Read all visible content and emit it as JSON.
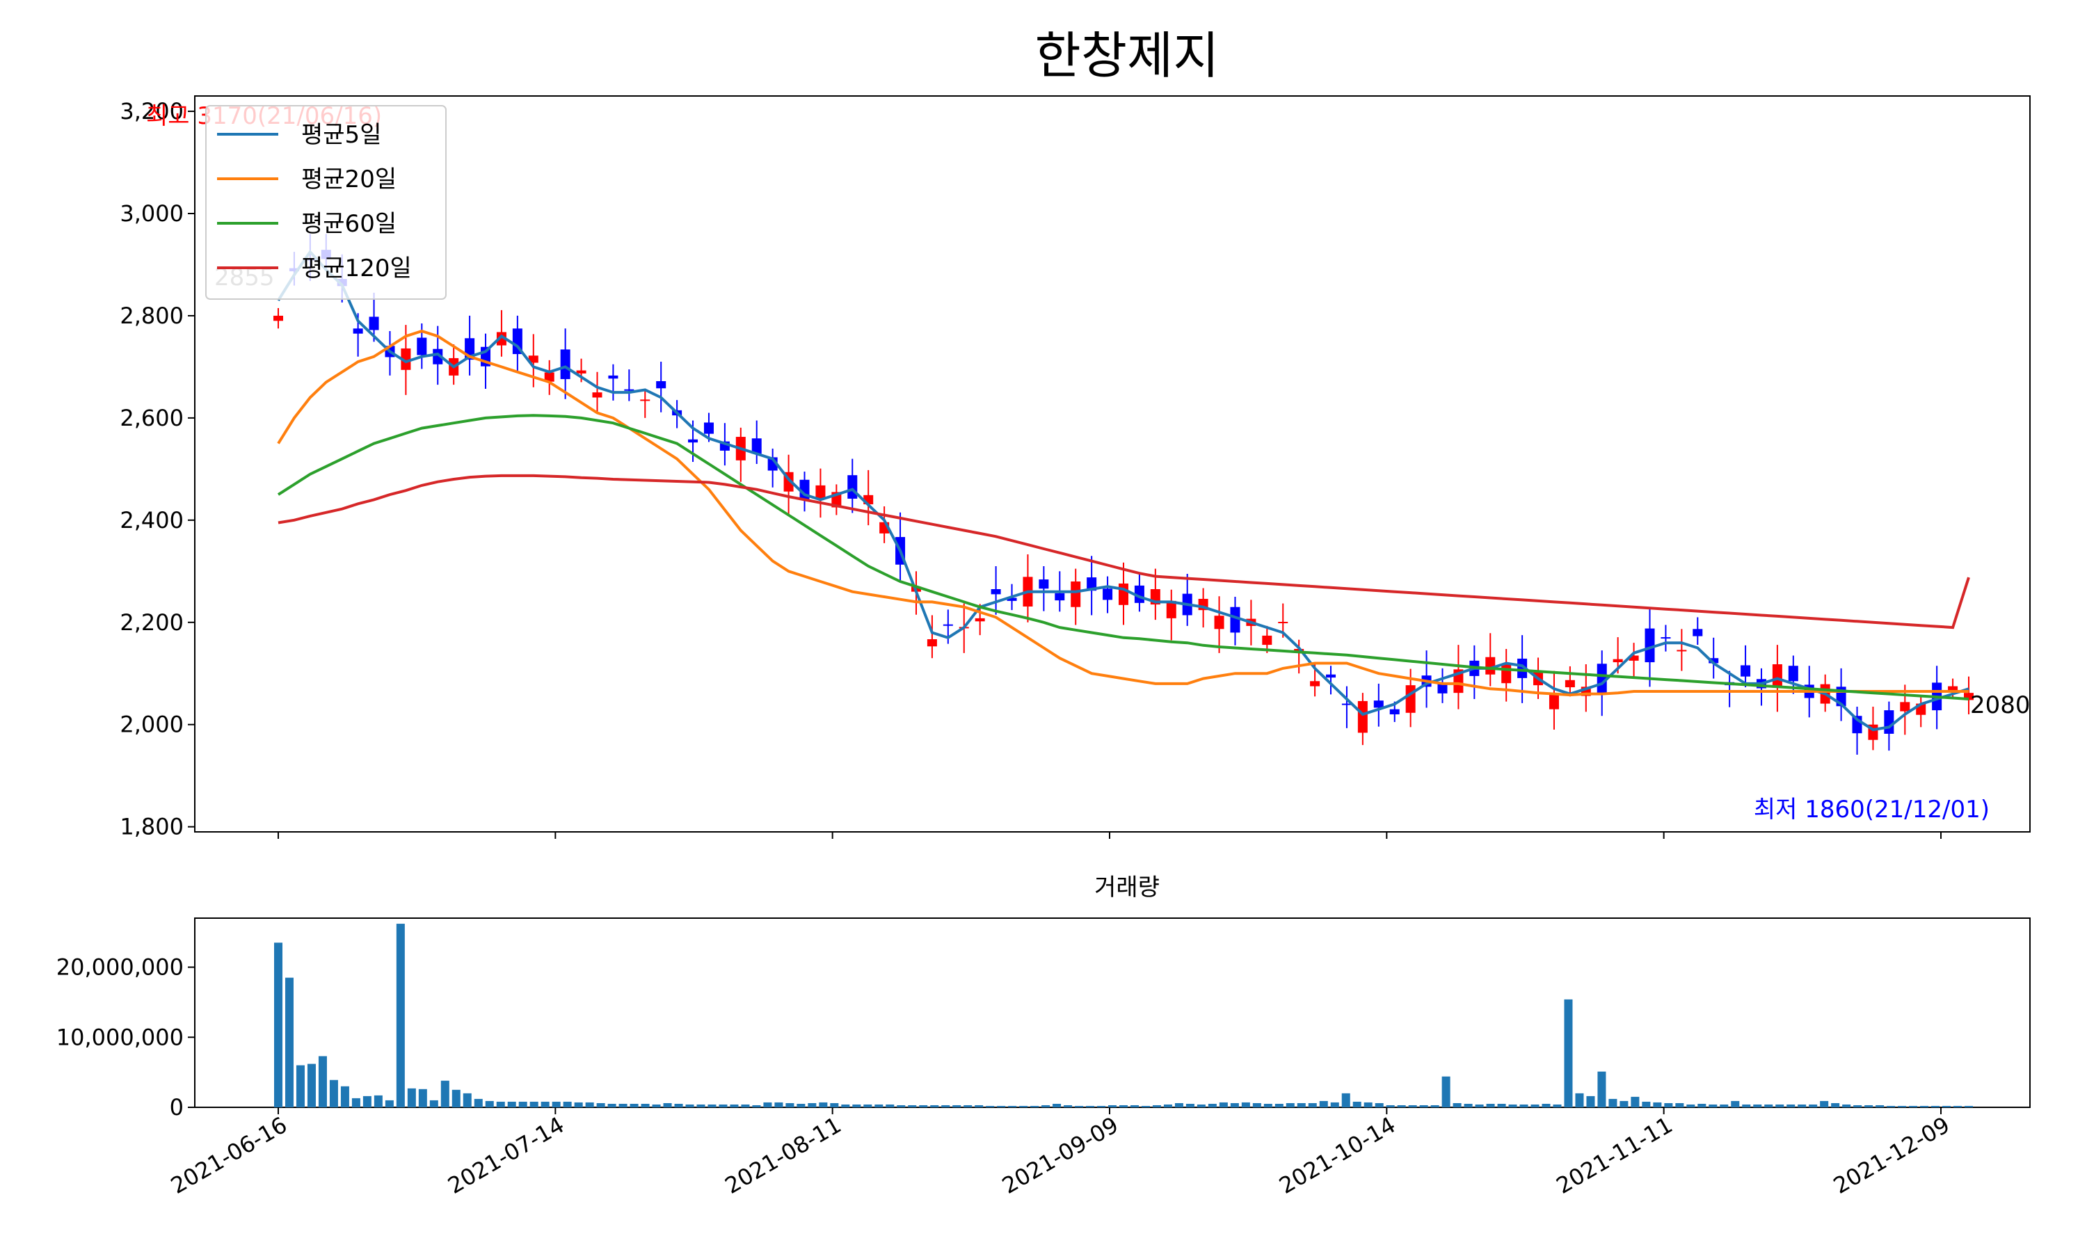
{
  "chart_data": [
    {
      "type": "candlestick",
      "title": "한창제지",
      "ylim": [
        1790,
        3230
      ],
      "yticks": [
        1800,
        2000,
        2200,
        2400,
        2600,
        2800,
        3000,
        3200
      ],
      "ytick_labels": [
        "1,800",
        "2,000",
        "2,200",
        "2,400",
        "2,600",
        "2,800",
        "3,000",
        "3,200"
      ],
      "xtick_labels": [
        "2021-06-16",
        "2021-07-14",
        "2021-08-11",
        "2021-09-09",
        "2021-10-14",
        "2021-11-11",
        "2021-12-09"
      ],
      "xtick_index": [
        0,
        20,
        40,
        60,
        80,
        100,
        120
      ],
      "up_color": "#ff0000",
      "down_color": "#0000ff",
      "legend_position": "top-left",
      "series": [
        {
          "name": "평균5일",
          "color": "#1f77b4",
          "values": [
            2830,
            2880,
            2925,
            2890,
            2860,
            2790,
            2760,
            2730,
            2710,
            2720,
            2725,
            2700,
            2720,
            2730,
            2760,
            2740,
            2700,
            2690,
            2700,
            2680,
            2660,
            2650,
            2650,
            2655,
            2640,
            2610,
            2580,
            2560,
            2550,
            2540,
            2530,
            2520,
            2480,
            2450,
            2440,
            2450,
            2460,
            2430,
            2400,
            2340,
            2260,
            2180,
            2170,
            2190,
            2230,
            2240,
            2250,
            2260,
            2260,
            2260,
            2260,
            2265,
            2270,
            2265,
            2250,
            2240,
            2240,
            2235,
            2230,
            2220,
            2210,
            2200,
            2190,
            2180,
            2150,
            2110,
            2080,
            2050,
            2020,
            2030,
            2040,
            2060,
            2080,
            2090,
            2100,
            2110,
            2110,
            2120,
            2115,
            2090,
            2070,
            2060,
            2070,
            2080,
            2110,
            2140,
            2150,
            2160,
            2160,
            2150,
            2120,
            2100,
            2080,
            2080,
            2090,
            2080,
            2070,
            2060,
            2040,
            2010,
            1990,
            1995,
            2020,
            2040,
            2050,
            2060,
            2070
          ]
        },
        {
          "name": "평균20일",
          "color": "#ff7f0e",
          "values": [
            2550,
            2600,
            2640,
            2670,
            2690,
            2710,
            2720,
            2740,
            2760,
            2770,
            2760,
            2740,
            2720,
            2710,
            2700,
            2690,
            2680,
            2670,
            2650,
            2630,
            2610,
            2600,
            2580,
            2560,
            2540,
            2520,
            2490,
            2460,
            2420,
            2380,
            2350,
            2320,
            2300,
            2290,
            2280,
            2270,
            2260,
            2255,
            2250,
            2245,
            2240,
            2240,
            2235,
            2230,
            2220,
            2210,
            2190,
            2170,
            2150,
            2130,
            2115,
            2100,
            2095,
            2090,
            2085,
            2080,
            2080,
            2080,
            2090,
            2095,
            2100,
            2100,
            2100,
            2110,
            2115,
            2120,
            2120,
            2120,
            2110,
            2100,
            2095,
            2090,
            2085,
            2080,
            2080,
            2075,
            2070,
            2068,
            2065,
            2062,
            2060,
            2058,
            2060,
            2060,
            2062,
            2065,
            2065,
            2065,
            2065,
            2065,
            2065,
            2065,
            2065,
            2065,
            2065,
            2065,
            2065,
            2065,
            2065,
            2065,
            2065,
            2065,
            2065,
            2065,
            2065,
            2065,
            2065
          ]
        },
        {
          "name": "평균60일",
          "color": "#2ca02c",
          "values": [
            2450,
            2470,
            2490,
            2505,
            2520,
            2535,
            2550,
            2560,
            2570,
            2580,
            2585,
            2590,
            2595,
            2600,
            2602,
            2604,
            2605,
            2604,
            2603,
            2600,
            2595,
            2590,
            2580,
            2570,
            2560,
            2550,
            2530,
            2510,
            2490,
            2470,
            2450,
            2430,
            2410,
            2390,
            2370,
            2350,
            2330,
            2310,
            2295,
            2280,
            2270,
            2260,
            2250,
            2240,
            2230,
            2222,
            2215,
            2208,
            2200,
            2190,
            2185,
            2180,
            2175,
            2170,
            2168,
            2165,
            2162,
            2160,
            2155,
            2152,
            2150,
            2148,
            2146,
            2144,
            2142,
            2140,
            2138,
            2136,
            2133,
            2130,
            2127,
            2124,
            2121,
            2118,
            2115,
            2112,
            2110,
            2108,
            2106,
            2104,
            2102,
            2100,
            2098,
            2096,
            2094,
            2092,
            2090,
            2088,
            2086,
            2084,
            2082,
            2080,
            2078,
            2076,
            2074,
            2072,
            2070,
            2068,
            2066,
            2064,
            2062,
            2060,
            2058,
            2056,
            2054,
            2052,
            2050
          ]
        },
        {
          "name": "평균120일",
          "color": "#d62728",
          "values": [
            2395,
            2400,
            2408,
            2415,
            2422,
            2432,
            2440,
            2450,
            2458,
            2468,
            2475,
            2480,
            2484,
            2486,
            2487,
            2487,
            2487,
            2486,
            2485,
            2483,
            2482,
            2480,
            2479,
            2478,
            2477,
            2476,
            2475,
            2474,
            2470,
            2465,
            2460,
            2453,
            2446,
            2440,
            2434,
            2428,
            2422,
            2416,
            2410,
            2404,
            2398,
            2392,
            2386,
            2380,
            2374,
            2368,
            2360,
            2352,
            2344,
            2336,
            2328,
            2320,
            2312,
            2304,
            2296,
            2290,
            2288,
            2286,
            2284,
            2282,
            2280,
            2278,
            2276,
            2274,
            2272,
            2270,
            2268,
            2266,
            2264,
            2262,
            2260,
            2258,
            2256,
            2254,
            2252,
            2250,
            2248,
            2246,
            2244,
            2242,
            2240,
            2238,
            2236,
            2234,
            2232,
            2230,
            2228,
            2226,
            2224,
            2222,
            2220,
            2218,
            2216,
            2214,
            2212,
            2210,
            2208,
            2206,
            2204,
            2202,
            2200,
            2198,
            2196,
            2194,
            2192,
            2190,
            2288
          ]
        }
      ],
      "annotations": [
        {
          "text": "최고 3170(21/06/16)",
          "color": "#ff0000",
          "position": "top-left"
        },
        {
          "text": "최저 1860(21/12/01)",
          "color": "#0000ff",
          "position": "bottom-right"
        },
        {
          "text": "2855",
          "color": "#000000",
          "position": "first-close"
        },
        {
          "text": "2080",
          "color": "#000000",
          "position": "last-close"
        }
      ]
    },
    {
      "type": "bar",
      "title": "거래량",
      "ylim": [
        0,
        27000000
      ],
      "yticks": [
        0,
        10000000,
        20000000
      ],
      "ytick_labels": [
        "0",
        "10,000,000",
        "20,000,000"
      ],
      "xtick_labels": [
        "2021-06-16",
        "2021-07-14",
        "2021-08-11",
        "2021-09-09",
        "2021-10-14",
        "2021-11-11",
        "2021-12-09"
      ],
      "color": "#1f77b4",
      "values": [
        23500000,
        18500000,
        6000000,
        6200000,
        7300000,
        3900000,
        3000000,
        1300000,
        1600000,
        1700000,
        1000000,
        26200000,
        2700000,
        2600000,
        1000000,
        3800000,
        2500000,
        2000000,
        1200000,
        900000,
        800000,
        800000,
        800000,
        800000,
        800000,
        800000,
        800000,
        700000,
        700000,
        600000,
        500000,
        500000,
        500000,
        500000,
        400000,
        600000,
        500000,
        400000,
        400000,
        400000,
        400000,
        400000,
        400000,
        300000,
        700000,
        700000,
        600000,
        500000,
        600000,
        700000,
        600000,
        400000,
        400000,
        400000,
        400000,
        400000,
        300000,
        300000,
        300000,
        300000,
        300000,
        300000,
        300000,
        300000,
        200000,
        200000,
        200000,
        200000,
        200000,
        300000,
        500000,
        300000,
        200000,
        200000,
        200000,
        300000,
        300000,
        300000,
        200000,
        300000,
        400000,
        600000,
        500000,
        400000,
        500000,
        700000,
        600000,
        700000,
        600000,
        500000,
        500000,
        600000,
        600000,
        600000,
        900000,
        700000,
        2000000,
        800000,
        700000,
        600000,
        300000,
        300000,
        300000,
        300000,
        300000,
        4400000,
        600000,
        500000,
        400000,
        500000,
        500000,
        400000,
        400000,
        400000,
        500000,
        400000,
        15400000,
        2000000,
        1600000,
        5100000,
        1200000,
        900000,
        1500000,
        800000,
        700000,
        600000,
        600000,
        400000,
        500000,
        400000,
        400000,
        900000,
        400000,
        400000,
        400000,
        400000,
        400000,
        400000,
        400000,
        900000,
        600000,
        400000,
        300000,
        300000,
        300000,
        200000,
        200000,
        200000,
        200000,
        200000,
        200000,
        200000,
        200000
      ]
    }
  ]
}
